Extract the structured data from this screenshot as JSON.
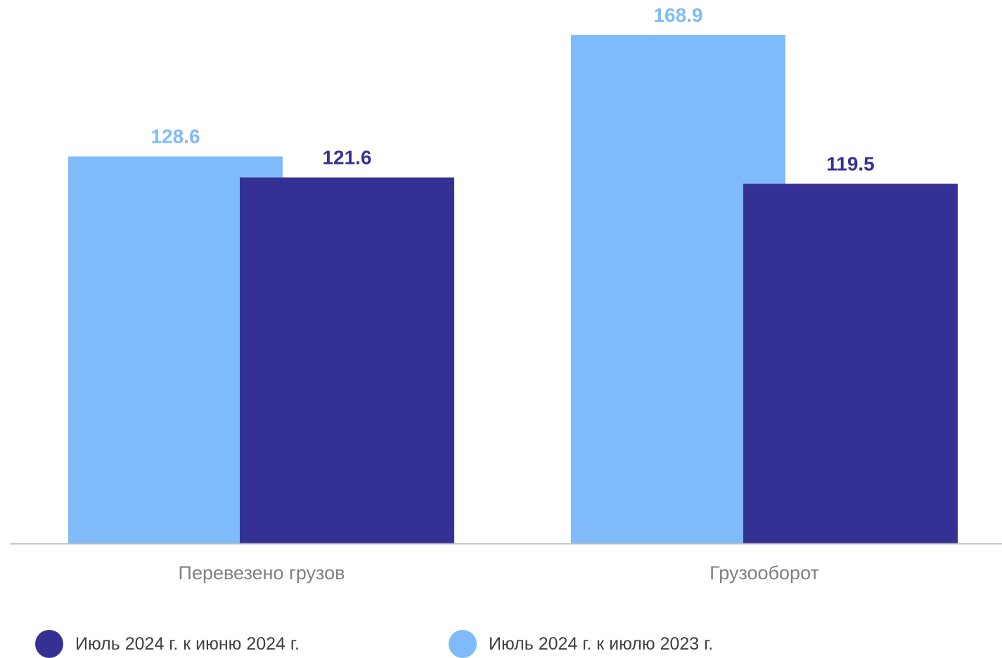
{
  "chart_data": {
    "type": "bar",
    "categories": [
      "Перевезено грузов",
      "Грузооборот"
    ],
    "series": [
      {
        "name": "Июль 2024 г. к июлю 2023 г.",
        "values": [
          128.6,
          168.9
        ],
        "color": "#7fbbfb"
      },
      {
        "name": "Июль 2024 г. к июню 2024 г.",
        "values": [
          121.6,
          119.5
        ],
        "color": "#353194"
      }
    ],
    "ylim": [
      0,
      168.9
    ],
    "grid": false,
    "legend_position": "bottom",
    "legend_order": [
      1,
      0
    ]
  }
}
